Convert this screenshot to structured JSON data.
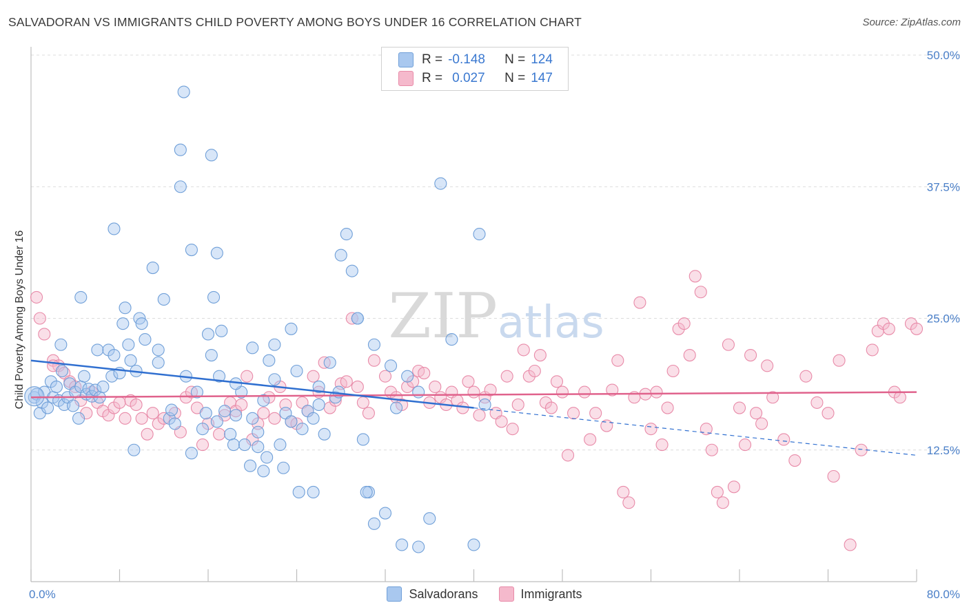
{
  "header": {
    "title": "SALVADORAN VS IMMIGRANTS CHILD POVERTY AMONG BOYS UNDER 16 CORRELATION CHART",
    "source": "Source: ZipAtlas.com"
  },
  "watermark": "ZIPatlas",
  "legend": {
    "rows": [
      {
        "r_label": "R =",
        "r_value": "-0.148",
        "n_label": "N =",
        "n_value": "124"
      },
      {
        "r_label": "R =",
        "r_value": "0.027",
        "n_label": "N =",
        "n_value": "147"
      }
    ]
  },
  "colors": {
    "blue_fill": "#a9c8ef",
    "blue_stroke": "#6f9fd8",
    "blue_line": "#2f6fd0",
    "pink_fill": "#f5b9cc",
    "pink_stroke": "#e88aa8",
    "pink_line": "#e0628c",
    "axis_text": "#4a7fc8"
  },
  "chart_data": {
    "type": "scatter",
    "title": "SALVADORAN VS IMMIGRANTS CHILD POVERTY AMONG BOYS UNDER 16 CORRELATION CHART",
    "xlabel": "",
    "ylabel": "Child Poverty Among Boys Under 16",
    "xlim": [
      0,
      80
    ],
    "ylim": [
      0,
      50
    ],
    "x_tick_labels": [
      "0.0%",
      "80.0%"
    ],
    "y_tick_values": [
      12.5,
      25.0,
      37.5,
      50.0
    ],
    "y_tick_labels": [
      "12.5%",
      "25.0%",
      "37.5%",
      "50.0%"
    ],
    "series": [
      {
        "name": "Salvadorans",
        "r": -0.148,
        "n": 124,
        "trend": {
          "x": [
            0,
            40
          ],
          "y": [
            21.0,
            16.5
          ]
        },
        "trend_extended": {
          "x": [
            40,
            80
          ],
          "y": [
            16.5,
            12.0
          ]
        },
        "points": [
          [
            0.3,
            17.5
          ],
          [
            0.5,
            17.8
          ],
          [
            0.8,
            16.0
          ],
          [
            1.0,
            17.0
          ],
          [
            1.2,
            18.0
          ],
          [
            1.5,
            16.5
          ],
          [
            1.8,
            19.0
          ],
          [
            2.0,
            17.5
          ],
          [
            2.3,
            18.5
          ],
          [
            2.5,
            17.2
          ],
          [
            2.8,
            20.0
          ],
          [
            3.0,
            16.8
          ],
          [
            3.3,
            17.5
          ],
          [
            3.5,
            18.8
          ],
          [
            3.8,
            16.7
          ],
          [
            4.0,
            18.0
          ],
          [
            4.3,
            15.5
          ],
          [
            4.5,
            18.5
          ],
          [
            4.8,
            19.5
          ],
          [
            5.0,
            17.8
          ],
          [
            5.2,
            18.3
          ],
          [
            5.5,
            17.6
          ],
          [
            5.8,
            18.2
          ],
          [
            6.0,
            22.0
          ],
          [
            6.2,
            17.5
          ],
          [
            6.5,
            18.5
          ],
          [
            7.0,
            22.0
          ],
          [
            7.3,
            19.5
          ],
          [
            7.5,
            21.5
          ],
          [
            2.7,
            22.5
          ],
          [
            4.5,
            27.0
          ],
          [
            7.5,
            33.5
          ],
          [
            8.0,
            19.8
          ],
          [
            8.3,
            24.5
          ],
          [
            8.5,
            26.0
          ],
          [
            8.8,
            22.5
          ],
          [
            9.0,
            21.0
          ],
          [
            9.3,
            12.5
          ],
          [
            9.5,
            20.0
          ],
          [
            9.8,
            25.0
          ],
          [
            10.0,
            24.5
          ],
          [
            10.3,
            23.0
          ],
          [
            11.0,
            29.8
          ],
          [
            11.5,
            20.8
          ],
          [
            12.0,
            26.8
          ],
          [
            12.5,
            15.5
          ],
          [
            12.7,
            16.3
          ],
          [
            13.0,
            15.0
          ],
          [
            13.5,
            37.5
          ],
          [
            14.0,
            19.5
          ],
          [
            14.5,
            12.2
          ],
          [
            15.0,
            18.0
          ],
          [
            15.5,
            14.5
          ],
          [
            15.8,
            16.0
          ],
          [
            16.0,
            23.5
          ],
          [
            16.3,
            21.5
          ],
          [
            16.8,
            15.2
          ],
          [
            17.0,
            19.5
          ],
          [
            17.5,
            16.2
          ],
          [
            18.0,
            14.0
          ],
          [
            18.3,
            13.0
          ],
          [
            18.5,
            15.8
          ],
          [
            19.0,
            18.0
          ],
          [
            19.3,
            13.0
          ],
          [
            19.8,
            11.0
          ],
          [
            20.0,
            15.5
          ],
          [
            20.5,
            14.2
          ],
          [
            21.0,
            17.2
          ],
          [
            21.5,
            21.0
          ],
          [
            22.0,
            19.2
          ],
          [
            22.5,
            13.0
          ],
          [
            23.0,
            16.0
          ],
          [
            23.5,
            15.2
          ],
          [
            24.0,
            20.0
          ],
          [
            24.5,
            14.5
          ],
          [
            25.0,
            16.2
          ],
          [
            25.5,
            15.5
          ],
          [
            26.0,
            16.8
          ],
          [
            26.5,
            14.0
          ],
          [
            27.0,
            20.8
          ],
          [
            27.5,
            17.5
          ],
          [
            28.0,
            31.0
          ],
          [
            28.5,
            33.0
          ],
          [
            29.0,
            29.5
          ],
          [
            29.5,
            25.0
          ],
          [
            30.0,
            13.5
          ],
          [
            30.5,
            8.5
          ],
          [
            31.0,
            5.5
          ],
          [
            32.0,
            6.5
          ],
          [
            33.5,
            3.5
          ],
          [
            34.0,
            19.5
          ],
          [
            35.0,
            18.0
          ],
          [
            36.0,
            6.0
          ],
          [
            37.0,
            37.8
          ],
          [
            38.0,
            23.0
          ],
          [
            40.0,
            3.5
          ],
          [
            40.5,
            33.0
          ],
          [
            41.0,
            16.8
          ],
          [
            13.8,
            46.5
          ],
          [
            13.5,
            41.0
          ],
          [
            16.3,
            40.5
          ],
          [
            14.5,
            31.5
          ],
          [
            16.8,
            31.2
          ],
          [
            16.5,
            27.0
          ],
          [
            17.2,
            23.8
          ],
          [
            18.5,
            18.8
          ],
          [
            20.5,
            12.8
          ],
          [
            21.3,
            11.8
          ],
          [
            21.0,
            10.5
          ],
          [
            20.0,
            22.2
          ],
          [
            22.0,
            22.5
          ],
          [
            23.5,
            24.0
          ],
          [
            24.2,
            8.5
          ],
          [
            25.5,
            8.5
          ],
          [
            26.0,
            18.5
          ],
          [
            27.8,
            18.0
          ],
          [
            29.5,
            25.0
          ],
          [
            30.3,
            8.5
          ],
          [
            31.0,
            22.5
          ],
          [
            32.5,
            20.5
          ],
          [
            33.0,
            16.5
          ],
          [
            35.0,
            3.3
          ],
          [
            22.8,
            10.8
          ],
          [
            11.5,
            22.0
          ]
        ]
      },
      {
        "name": "Immigrants",
        "r": 0.027,
        "n": 147,
        "trend": {
          "x": [
            0,
            80
          ],
          "y": [
            17.5,
            18.0
          ]
        },
        "points": [
          [
            0.5,
            27.0
          ],
          [
            0.8,
            25.0
          ],
          [
            1.2,
            23.5
          ],
          [
            2.0,
            21.0
          ],
          [
            2.5,
            20.5
          ],
          [
            3.0,
            19.8
          ],
          [
            3.5,
            19.0
          ],
          [
            4.0,
            18.5
          ],
          [
            4.5,
            17.2
          ],
          [
            5.0,
            16.0
          ],
          [
            5.5,
            18.0
          ],
          [
            6.0,
            17.0
          ],
          [
            6.5,
            16.2
          ],
          [
            7.0,
            15.8
          ],
          [
            7.5,
            16.5
          ],
          [
            8.0,
            17.0
          ],
          [
            8.5,
            15.5
          ],
          [
            9.0,
            17.2
          ],
          [
            9.5,
            16.8
          ],
          [
            10.0,
            15.5
          ],
          [
            10.5,
            14.0
          ],
          [
            11.0,
            16.0
          ],
          [
            11.5,
            15.0
          ],
          [
            12.0,
            15.5
          ],
          [
            13.0,
            16.0
          ],
          [
            13.5,
            14.2
          ],
          [
            14.0,
            17.5
          ],
          [
            14.5,
            18.0
          ],
          [
            15.0,
            16.5
          ],
          [
            15.5,
            13.0
          ],
          [
            16.0,
            15.0
          ],
          [
            17.0,
            14.0
          ],
          [
            17.5,
            15.8
          ],
          [
            18.0,
            17.0
          ],
          [
            18.5,
            16.2
          ],
          [
            19.0,
            16.8
          ],
          [
            19.5,
            19.5
          ],
          [
            20.0,
            13.5
          ],
          [
            20.5,
            15.0
          ],
          [
            21.0,
            16.0
          ],
          [
            21.5,
            17.5
          ],
          [
            22.0,
            15.5
          ],
          [
            22.5,
            18.5
          ],
          [
            23.0,
            16.8
          ],
          [
            23.5,
            15.2
          ],
          [
            24.0,
            15.0
          ],
          [
            24.5,
            17.0
          ],
          [
            25.0,
            16.2
          ],
          [
            25.5,
            19.5
          ],
          [
            26.0,
            18.0
          ],
          [
            26.5,
            20.8
          ],
          [
            27.0,
            16.5
          ],
          [
            27.5,
            17.2
          ],
          [
            28.0,
            18.8
          ],
          [
            28.5,
            19.0
          ],
          [
            29.0,
            25.0
          ],
          [
            29.5,
            18.5
          ],
          [
            30.0,
            17.0
          ],
          [
            30.5,
            16.0
          ],
          [
            31.0,
            21.0
          ],
          [
            32.0,
            19.5
          ],
          [
            32.5,
            18.0
          ],
          [
            33.0,
            17.5
          ],
          [
            33.5,
            16.8
          ],
          [
            34.0,
            18.5
          ],
          [
            34.5,
            19.0
          ],
          [
            35.0,
            20.0
          ],
          [
            35.5,
            19.8
          ],
          [
            36.0,
            17.0
          ],
          [
            36.5,
            18.5
          ],
          [
            37.0,
            17.5
          ],
          [
            37.5,
            16.8
          ],
          [
            38.0,
            18.0
          ],
          [
            38.5,
            17.2
          ],
          [
            39.0,
            16.5
          ],
          [
            39.5,
            19.0
          ],
          [
            40.0,
            18.0
          ],
          [
            40.5,
            15.8
          ],
          [
            41.0,
            17.5
          ],
          [
            41.5,
            18.2
          ],
          [
            42.0,
            16.0
          ],
          [
            42.5,
            15.2
          ],
          [
            43.0,
            19.5
          ],
          [
            43.5,
            14.5
          ],
          [
            44.0,
            16.8
          ],
          [
            44.5,
            22.0
          ],
          [
            45.0,
            19.5
          ],
          [
            45.5,
            20.0
          ],
          [
            46.0,
            21.5
          ],
          [
            46.5,
            17.0
          ],
          [
            47.0,
            16.5
          ],
          [
            47.5,
            19.0
          ],
          [
            48.0,
            18.0
          ],
          [
            48.5,
            12.0
          ],
          [
            49.0,
            16.0
          ],
          [
            50.0,
            18.0
          ],
          [
            50.5,
            13.5
          ],
          [
            51.0,
            16.0
          ],
          [
            52.0,
            14.8
          ],
          [
            52.5,
            18.2
          ],
          [
            53.0,
            21.0
          ],
          [
            53.5,
            8.5
          ],
          [
            54.0,
            7.5
          ],
          [
            54.5,
            17.5
          ],
          [
            55.0,
            26.5
          ],
          [
            55.5,
            17.8
          ],
          [
            56.0,
            14.5
          ],
          [
            56.5,
            18.0
          ],
          [
            57.0,
            13.0
          ],
          [
            57.5,
            16.5
          ],
          [
            58.0,
            20.0
          ],
          [
            58.5,
            24.0
          ],
          [
            59.0,
            24.5
          ],
          [
            59.5,
            21.5
          ],
          [
            60.0,
            29.0
          ],
          [
            60.5,
            27.5
          ],
          [
            61.0,
            14.5
          ],
          [
            61.5,
            12.5
          ],
          [
            62.0,
            8.5
          ],
          [
            62.5,
            7.5
          ],
          [
            63.0,
            22.5
          ],
          [
            63.5,
            9.0
          ],
          [
            64.0,
            16.5
          ],
          [
            64.5,
            13.0
          ],
          [
            65.0,
            21.5
          ],
          [
            65.5,
            16.0
          ],
          [
            66.0,
            15.0
          ],
          [
            66.5,
            20.5
          ],
          [
            67.0,
            17.5
          ],
          [
            68.0,
            13.5
          ],
          [
            69.0,
            11.5
          ],
          [
            70.0,
            19.5
          ],
          [
            71.0,
            17.0
          ],
          [
            72.0,
            16.0
          ],
          [
            72.5,
            10.0
          ],
          [
            73.0,
            21.0
          ],
          [
            74.0,
            3.5
          ],
          [
            75.0,
            12.5
          ],
          [
            76.0,
            22.0
          ],
          [
            76.5,
            23.8
          ],
          [
            77.0,
            24.5
          ],
          [
            77.5,
            24.0
          ],
          [
            78.0,
            18.0
          ],
          [
            78.5,
            17.5
          ],
          [
            79.5,
            24.5
          ],
          [
            80.0,
            24.0
          ],
          [
            2.0,
            20.5
          ]
        ]
      }
    ]
  }
}
